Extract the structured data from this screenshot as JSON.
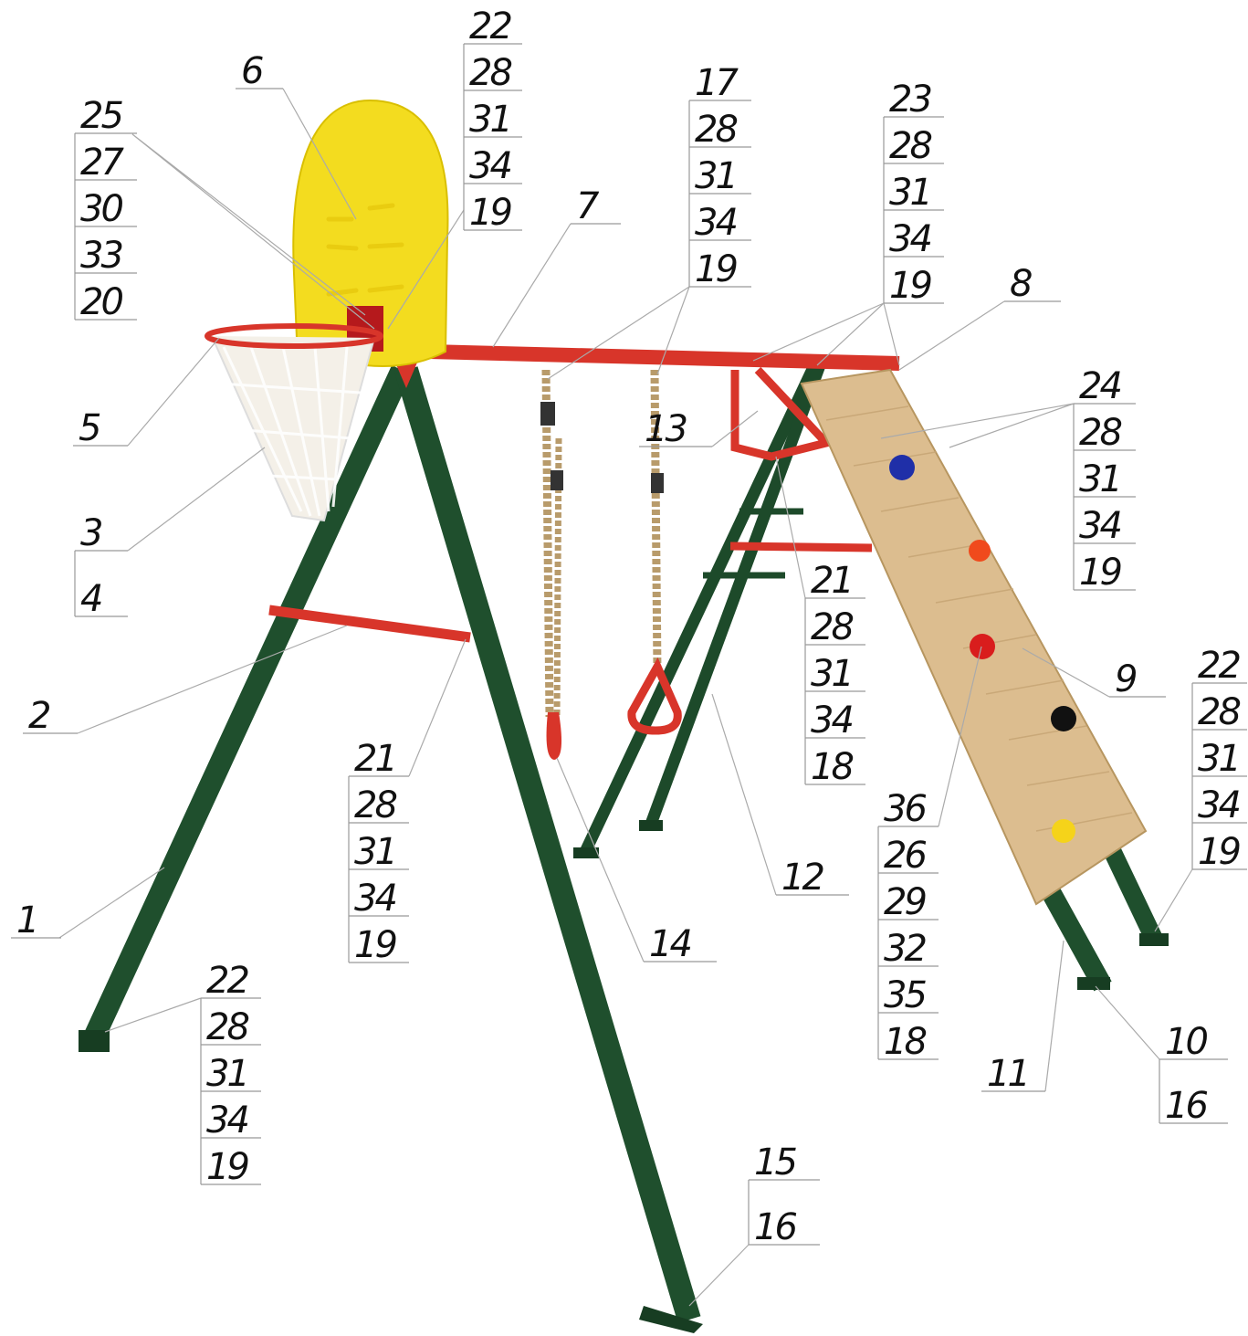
{
  "callouts": [
    {
      "labels": [
        "22",
        "28",
        "31",
        "34",
        "19"
      ]
    },
    {
      "labels": [
        "6"
      ]
    },
    {
      "labels": [
        "25",
        "27",
        "30",
        "33",
        "20"
      ]
    },
    {
      "labels": [
        "17",
        "28",
        "31",
        "34",
        "19"
      ]
    },
    {
      "labels": [
        "7"
      ]
    },
    {
      "labels": [
        "23",
        "28",
        "31",
        "34",
        "19"
      ]
    },
    {
      "labels": [
        "8"
      ]
    },
    {
      "labels": [
        "5"
      ]
    },
    {
      "labels": [
        "13"
      ]
    },
    {
      "labels": [
        "24",
        "28",
        "31",
        "34",
        "19"
      ]
    },
    {
      "labels": [
        "3",
        "4"
      ]
    },
    {
      "labels": [
        "21",
        "28",
        "31",
        "34",
        "18"
      ]
    },
    {
      "labels": [
        "2"
      ]
    },
    {
      "labels": [
        "9"
      ]
    },
    {
      "labels": [
        "22",
        "28",
        "31",
        "34",
        "19"
      ]
    },
    {
      "labels": [
        "21",
        "28",
        "31",
        "34",
        "19"
      ]
    },
    {
      "labels": [
        "36",
        "26",
        "29",
        "32",
        "35",
        "18"
      ]
    },
    {
      "labels": [
        "12"
      ]
    },
    {
      "labels": [
        "1"
      ]
    },
    {
      "labels": [
        "14"
      ]
    },
    {
      "labels": [
        "22",
        "28",
        "31",
        "34",
        "19"
      ]
    },
    {
      "labels": [
        "11"
      ]
    },
    {
      "labels": [
        "10",
        "16"
      ]
    },
    {
      "labels": [
        "15",
        "16"
      ]
    }
  ]
}
